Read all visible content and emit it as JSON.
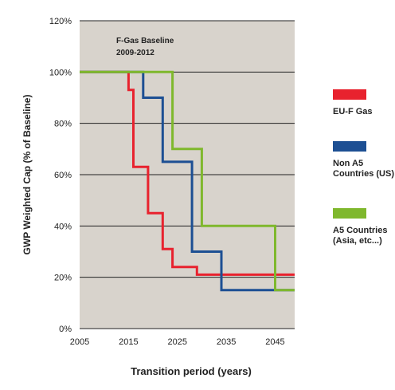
{
  "chart_data": {
    "type": "line",
    "step": true,
    "xlabel": "Transition period (years)",
    "ylabel": "GWP Weighted Cap (% of Baseline)",
    "xlim": [
      2005,
      2049
    ],
    "ylim": [
      0,
      120
    ],
    "x_ticks": [
      "2005",
      "2015",
      "2025",
      "2035",
      "2045"
    ],
    "y_ticks": [
      "0%",
      "20%",
      "40%",
      "60%",
      "80%",
      "100%",
      "120%"
    ],
    "grid": "horizontal",
    "plot_background": "#d8d3cc",
    "annotation": [
      "F-Gas Baseline",
      "2009-2012"
    ],
    "legend_position": "right",
    "series": [
      {
        "name": "EU-F Gas",
        "color": "#e8222e",
        "x": [
          2005,
          2015,
          2015,
          2016,
          2016,
          2019,
          2019,
          2022,
          2022,
          2024,
          2024,
          2029,
          2029,
          2049
        ],
        "y": [
          100,
          100,
          93,
          93,
          63,
          63,
          45,
          45,
          31,
          31,
          24,
          24,
          21,
          21
        ]
      },
      {
        "name": "Non A5 Countries (US)",
        "label_lines": [
          "Non A5",
          "Countries (US)"
        ],
        "color": "#1d4f93",
        "x": [
          2005,
          2018,
          2018,
          2022,
          2022,
          2028,
          2028,
          2034,
          2034,
          2049
        ],
        "y": [
          100,
          100,
          90,
          90,
          65,
          65,
          30,
          30,
          15,
          15
        ]
      },
      {
        "name": "A5 Countries (Asia, etc...)",
        "label_lines": [
          "A5 Countries",
          "(Asia, etc...)"
        ],
        "color": "#7fb82d",
        "x": [
          2005,
          2024,
          2024,
          2030,
          2030,
          2045,
          2045,
          2049
        ],
        "y": [
          100,
          100,
          70,
          70,
          40,
          40,
          15,
          15
        ]
      }
    ]
  }
}
